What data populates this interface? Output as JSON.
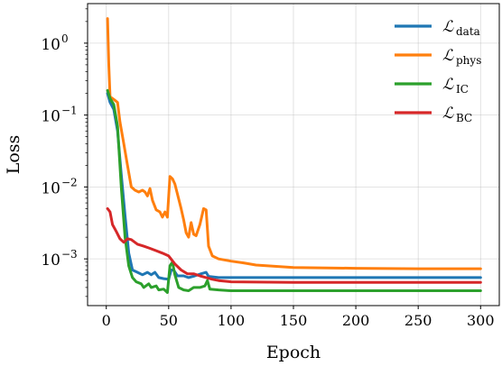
{
  "chart_data": {
    "type": "line",
    "xlabel": "Epoch",
    "ylabel": "Loss",
    "xlim": [
      -15,
      315
    ],
    "ylim_log10": [
      -3.65,
      0.55
    ],
    "yscale": "log",
    "grid": true,
    "legend_position": "top-right",
    "x_ticks": [
      0,
      50,
      100,
      150,
      200,
      250,
      300
    ],
    "y_ticks": [
      {
        "exp": 0,
        "label": "10",
        "sup": "0"
      },
      {
        "exp": -1,
        "label": "10",
        "sup": "−1"
      },
      {
        "exp": -2,
        "label": "10",
        "sup": "−2"
      },
      {
        "exp": -3,
        "label": "10",
        "sup": "−3"
      }
    ],
    "series": [
      {
        "name": "data",
        "legend_main": "ℒ",
        "legend_sub": "data",
        "color": "#1f77b4",
        "points": [
          [
            1,
            0.2
          ],
          [
            3,
            0.15
          ],
          [
            6,
            0.12
          ],
          [
            9,
            0.06
          ],
          [
            12,
            0.015
          ],
          [
            15,
            0.004
          ],
          [
            18,
            0.0012
          ],
          [
            21,
            0.0007
          ],
          [
            25,
            0.00065
          ],
          [
            29,
            0.0006
          ],
          [
            33,
            0.00065
          ],
          [
            36,
            0.0006
          ],
          [
            39,
            0.00065
          ],
          [
            42,
            0.00055
          ],
          [
            46,
            0.00053
          ],
          [
            50,
            0.00052
          ],
          [
            52,
            0.0007
          ],
          [
            54,
            0.0007
          ],
          [
            57,
            0.00058
          ],
          [
            62,
            0.00058
          ],
          [
            66,
            0.00055
          ],
          [
            71,
            0.00058
          ],
          [
            76,
            0.00062
          ],
          [
            80,
            0.00065
          ],
          [
            82,
            0.00057
          ],
          [
            90,
            0.00055
          ],
          [
            100,
            0.00055
          ],
          [
            150,
            0.00055
          ],
          [
            200,
            0.00055
          ],
          [
            250,
            0.00055
          ],
          [
            300,
            0.00055
          ]
        ]
      },
      {
        "name": "phys",
        "legend_main": "ℒ",
        "legend_sub": "phys",
        "color": "#ff7f0e",
        "points": [
          [
            1,
            2.2
          ],
          [
            2,
            0.5
          ],
          [
            3,
            0.18
          ],
          [
            5,
            0.17
          ],
          [
            7,
            0.16
          ],
          [
            9,
            0.15
          ],
          [
            11,
            0.08
          ],
          [
            14,
            0.04
          ],
          [
            17,
            0.02
          ],
          [
            20,
            0.01
          ],
          [
            23,
            0.009
          ],
          [
            26,
            0.0085
          ],
          [
            29,
            0.009
          ],
          [
            31,
            0.0085
          ],
          [
            33,
            0.0075
          ],
          [
            35,
            0.0095
          ],
          [
            37,
            0.0065
          ],
          [
            40,
            0.0048
          ],
          [
            43,
            0.0045
          ],
          [
            45,
            0.0038
          ],
          [
            47,
            0.0045
          ],
          [
            49,
            0.0038
          ],
          [
            51,
            0.014
          ],
          [
            53,
            0.013
          ],
          [
            55,
            0.011
          ],
          [
            57,
            0.008
          ],
          [
            60,
            0.005
          ],
          [
            62,
            0.0035
          ],
          [
            64,
            0.0023
          ],
          [
            66,
            0.002
          ],
          [
            68,
            0.0032
          ],
          [
            70,
            0.0022
          ],
          [
            72,
            0.0021
          ],
          [
            75,
            0.003
          ],
          [
            78,
            0.005
          ],
          [
            80,
            0.0048
          ],
          [
            82,
            0.0015
          ],
          [
            85,
            0.0011
          ],
          [
            90,
            0.001
          ],
          [
            100,
            0.00093
          ],
          [
            110,
            0.00088
          ],
          [
            120,
            0.00082
          ],
          [
            150,
            0.00076
          ],
          [
            200,
            0.00074
          ],
          [
            250,
            0.00073
          ],
          [
            300,
            0.00073
          ]
        ]
      },
      {
        "name": "IC",
        "legend_main": "ℒ",
        "legend_sub": "IC",
        "color": "#2ca02c",
        "points": [
          [
            1,
            0.22
          ],
          [
            3,
            0.17
          ],
          [
            6,
            0.14
          ],
          [
            9,
            0.07
          ],
          [
            12,
            0.01
          ],
          [
            15,
            0.002
          ],
          [
            18,
            0.0008
          ],
          [
            21,
            0.00055
          ],
          [
            24,
            0.00048
          ],
          [
            28,
            0.00045
          ],
          [
            30,
            0.0004
          ],
          [
            34,
            0.00045
          ],
          [
            36,
            0.0004
          ],
          [
            40,
            0.00042
          ],
          [
            42,
            0.00037
          ],
          [
            46,
            0.00038
          ],
          [
            49,
            0.00034
          ],
          [
            51,
            0.0008
          ],
          [
            53,
            0.0009
          ],
          [
            55,
            0.0006
          ],
          [
            58,
            0.0004
          ],
          [
            62,
            0.00037
          ],
          [
            66,
            0.00036
          ],
          [
            70,
            0.0004
          ],
          [
            75,
            0.0004
          ],
          [
            79,
            0.00042
          ],
          [
            81,
            0.0005
          ],
          [
            83,
            0.00038
          ],
          [
            90,
            0.00037
          ],
          [
            100,
            0.00036
          ],
          [
            150,
            0.00036
          ],
          [
            200,
            0.00036
          ],
          [
            250,
            0.00036
          ],
          [
            300,
            0.00036
          ]
        ]
      },
      {
        "name": "BC",
        "legend_main": "ℒ",
        "legend_sub": "BC",
        "color": "#d62728",
        "points": [
          [
            1,
            0.005
          ],
          [
            3,
            0.0045
          ],
          [
            5,
            0.003
          ],
          [
            8,
            0.0024
          ],
          [
            11,
            0.0019
          ],
          [
            14,
            0.0017
          ],
          [
            17,
            0.0019
          ],
          [
            20,
            0.00185
          ],
          [
            25,
            0.0016
          ],
          [
            30,
            0.0015
          ],
          [
            35,
            0.0014
          ],
          [
            40,
            0.0013
          ],
          [
            45,
            0.0012
          ],
          [
            50,
            0.0011
          ],
          [
            55,
            0.00085
          ],
          [
            60,
            0.0007
          ],
          [
            65,
            0.00062
          ],
          [
            70,
            0.00062
          ],
          [
            75,
            0.00058
          ],
          [
            80,
            0.00055
          ],
          [
            85,
            0.00052
          ],
          [
            90,
            0.0005
          ],
          [
            100,
            0.00048
          ],
          [
            150,
            0.00047
          ],
          [
            200,
            0.00047
          ],
          [
            250,
            0.00047
          ],
          [
            300,
            0.00047
          ]
        ]
      }
    ]
  }
}
